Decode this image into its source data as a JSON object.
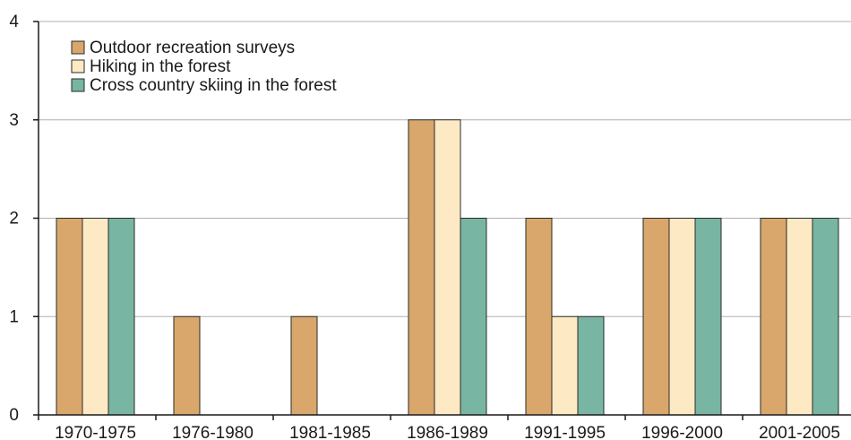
{
  "chart_data": {
    "type": "bar",
    "categories": [
      "1970-1975",
      "1976-1980",
      "1981-1985",
      "1986-1989",
      "1991-1995",
      "1996-2000",
      "2001-2005"
    ],
    "series": [
      {
        "name": "Outdoor recreation surveys",
        "color": "#d9a76b",
        "values": [
          2,
          1,
          1,
          3,
          2,
          2,
          2
        ]
      },
      {
        "name": "Hiking in the forest",
        "color": "#fdeac4",
        "values": [
          2,
          0,
          0,
          3,
          1,
          2,
          2
        ]
      },
      {
        "name": "Cross country skiing in the forest",
        "color": "#79b5a3",
        "values": [
          2,
          0,
          0,
          2,
          1,
          2,
          2
        ]
      }
    ],
    "yticks": [
      "0",
      "1",
      "2",
      "3",
      "4"
    ],
    "ylim": [
      0,
      4
    ],
    "grid": true,
    "legend_position": "top-left",
    "title": "",
    "xlabel": "",
    "ylabel": ""
  }
}
